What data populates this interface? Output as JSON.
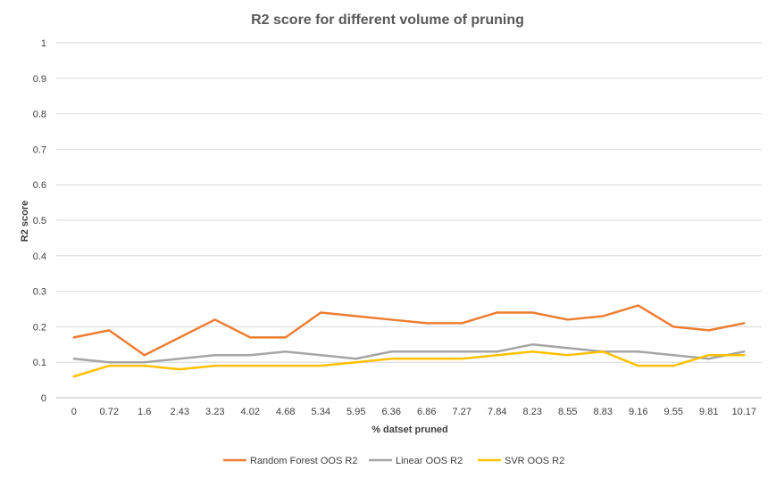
{
  "chart_data": {
    "type": "line",
    "title": "R2 score for different volume of pruning",
    "xlabel": "% datset pruned",
    "ylabel": "R2 score",
    "ylim": [
      0,
      1
    ],
    "yticks": [
      "0",
      "0.1",
      "0.2",
      "0.3",
      "0.4",
      "0.5",
      "0.6",
      "0.7",
      "0.8",
      "0.9",
      "1"
    ],
    "grid": true,
    "legend_position": "bottom",
    "categories": [
      "0",
      "0.72",
      "1.6",
      "2.43",
      "3.23",
      "4.02",
      "4.68",
      "5.34",
      "5.95",
      "6.36",
      "6.86",
      "7.27",
      "7.84",
      "8.23",
      "8.55",
      "8.83",
      "9.16",
      "9.55",
      "9.81",
      "10.17"
    ],
    "series": [
      {
        "name": "Random Forest OOS R2",
        "color": "#ED7D31",
        "values": [
          0.17,
          0.19,
          0.12,
          0.17,
          0.22,
          0.17,
          0.17,
          0.24,
          0.23,
          0.22,
          0.21,
          0.21,
          0.24,
          0.24,
          0.22,
          0.23,
          0.26,
          0.2,
          0.19,
          0.21
        ]
      },
      {
        "name": "Linear OOS R2",
        "color": "#A5A5A5",
        "values": [
          0.11,
          0.1,
          0.1,
          0.11,
          0.12,
          0.12,
          0.13,
          0.12,
          0.11,
          0.13,
          0.13,
          0.13,
          0.13,
          0.15,
          0.14,
          0.13,
          0.13,
          0.12,
          0.11,
          0.13
        ]
      },
      {
        "name": "SVR OOS R2",
        "color": "#FFC000",
        "values": [
          0.06,
          0.09,
          0.09,
          0.08,
          0.09,
          0.09,
          0.09,
          0.09,
          0.1,
          0.11,
          0.11,
          0.11,
          0.12,
          0.13,
          0.12,
          0.13,
          0.09,
          0.09,
          0.12,
          0.12
        ]
      }
    ]
  }
}
